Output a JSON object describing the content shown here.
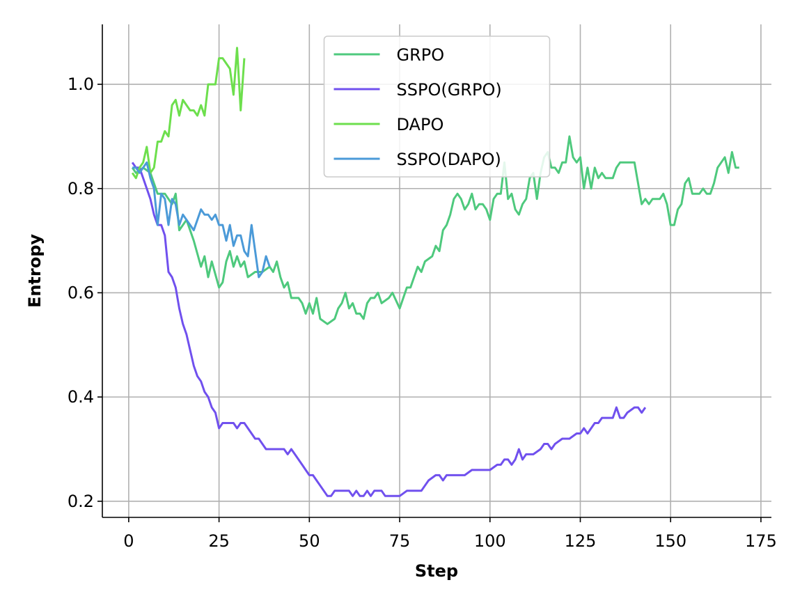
{
  "chart_data": {
    "type": "line",
    "xlabel": "Step",
    "ylabel": "Entropy",
    "xlim": [
      -7.3,
      177.9
    ],
    "ylim": [
      0.169,
      1.115
    ],
    "xticks": [
      0,
      25,
      50,
      75,
      100,
      125,
      150,
      175
    ],
    "yticks": [
      0.2,
      0.4,
      0.6,
      0.8,
      {
        "value": 1,
        "label": "1.0"
      }
    ],
    "grid": true,
    "legend_loc": "upper center",
    "series": [
      {
        "name": "GRPO",
        "color": "#4ec97d",
        "x": [
          1,
          2,
          4,
          6,
          8,
          10,
          12,
          13,
          14,
          16,
          18,
          20,
          21,
          22,
          23,
          25,
          26,
          27,
          28,
          29,
          30,
          31,
          32,
          33,
          35,
          37,
          39,
          40,
          41,
          42,
          43,
          44,
          45,
          47,
          48,
          49,
          50,
          51,
          52,
          53,
          55,
          57,
          58,
          59,
          60,
          61,
          62,
          63,
          64,
          65,
          66,
          67,
          68,
          69,
          70,
          72,
          73,
          75,
          77,
          78,
          80,
          81,
          82,
          84,
          85,
          86,
          87,
          88,
          89,
          90,
          91,
          92,
          93,
          94,
          95,
          96,
          97,
          98,
          99,
          100,
          101,
          102,
          103,
          104,
          105,
          106,
          107,
          108,
          109,
          110,
          111,
          112,
          113,
          114,
          115,
          116,
          117,
          118,
          119,
          120,
          121,
          122,
          123,
          124,
          125,
          126,
          127,
          128,
          129,
          130,
          131,
          132,
          134,
          135,
          136,
          137,
          140,
          141,
          142,
          143,
          144,
          145,
          147,
          148,
          149,
          150,
          151,
          152,
          153,
          154,
          155,
          156,
          157,
          158,
          159,
          160,
          161,
          162,
          163,
          164,
          165,
          166,
          167,
          168,
          169
        ],
        "values": [
          0.84,
          0.83,
          0.84,
          0.83,
          0.79,
          0.79,
          0.77,
          0.79,
          0.72,
          0.74,
          0.7,
          0.65,
          0.67,
          0.63,
          0.66,
          0.61,
          0.62,
          0.66,
          0.68,
          0.65,
          0.67,
          0.65,
          0.66,
          0.63,
          0.64,
          0.64,
          0.65,
          0.64,
          0.66,
          0.63,
          0.61,
          0.62,
          0.59,
          0.59,
          0.58,
          0.56,
          0.58,
          0.56,
          0.59,
          0.55,
          0.54,
          0.55,
          0.57,
          0.58,
          0.6,
          0.57,
          0.58,
          0.56,
          0.56,
          0.55,
          0.58,
          0.59,
          0.59,
          0.6,
          0.58,
          0.59,
          0.6,
          0.57,
          0.61,
          0.61,
          0.65,
          0.64,
          0.66,
          0.67,
          0.69,
          0.68,
          0.72,
          0.73,
          0.75,
          0.78,
          0.79,
          0.78,
          0.76,
          0.77,
          0.79,
          0.76,
          0.77,
          0.77,
          0.76,
          0.74,
          0.78,
          0.79,
          0.79,
          0.85,
          0.78,
          0.79,
          0.76,
          0.75,
          0.77,
          0.78,
          0.82,
          0.83,
          0.78,
          0.83,
          0.86,
          0.87,
          0.84,
          0.84,
          0.83,
          0.85,
          0.85,
          0.9,
          0.86,
          0.85,
          0.86,
          0.8,
          0.84,
          0.8,
          0.84,
          0.82,
          0.83,
          0.82,
          0.82,
          0.84,
          0.85,
          0.85,
          0.85,
          0.81,
          0.77,
          0.78,
          0.77,
          0.78,
          0.78,
          0.79,
          0.77,
          0.73,
          0.73,
          0.76,
          0.77,
          0.81,
          0.82,
          0.79,
          0.79,
          0.79,
          0.8,
          0.79,
          0.79,
          0.81,
          0.84,
          0.85,
          0.86,
          0.83,
          0.87,
          0.84,
          0.84
        ]
      },
      {
        "name": "SSPO(GRPO)",
        "color": "#7050ee",
        "x": [
          1,
          2,
          3,
          4,
          5,
          6,
          7,
          8,
          9,
          10,
          11,
          12,
          13,
          14,
          15,
          16,
          17,
          18,
          19,
          20,
          21,
          22,
          23,
          24,
          25,
          26,
          27,
          28,
          29,
          30,
          31,
          32,
          33,
          34,
          35,
          36,
          37,
          38,
          39,
          40,
          41,
          42,
          43,
          44,
          45,
          46,
          47,
          48,
          49,
          50,
          51,
          52,
          53,
          54,
          55,
          56,
          57,
          58,
          60,
          61,
          62,
          63,
          64,
          65,
          66,
          67,
          68,
          70,
          71,
          72,
          73,
          74,
          75,
          77,
          80,
          81,
          82,
          83,
          85,
          86,
          87,
          88,
          89,
          90,
          91,
          93,
          95,
          97,
          98,
          99,
          100,
          102,
          103,
          104,
          105,
          106,
          107,
          108,
          109,
          110,
          112,
          114,
          115,
          116,
          117,
          118,
          120,
          121,
          122,
          124,
          125,
          126,
          127,
          128,
          129,
          130,
          131,
          132,
          134,
          135,
          136,
          137,
          138,
          140,
          141,
          142,
          143
        ],
        "values": [
          0.85,
          0.84,
          0.84,
          0.82,
          0.8,
          0.78,
          0.75,
          0.73,
          0.73,
          0.71,
          0.64,
          0.63,
          0.61,
          0.57,
          0.54,
          0.52,
          0.49,
          0.46,
          0.44,
          0.43,
          0.41,
          0.4,
          0.38,
          0.37,
          0.34,
          0.35,
          0.35,
          0.35,
          0.35,
          0.34,
          0.35,
          0.35,
          0.34,
          0.33,
          0.32,
          0.32,
          0.31,
          0.3,
          0.3,
          0.3,
          0.3,
          0.3,
          0.3,
          0.29,
          0.3,
          0.29,
          0.28,
          0.27,
          0.26,
          0.25,
          0.25,
          0.24,
          0.23,
          0.22,
          0.21,
          0.21,
          0.22,
          0.22,
          0.22,
          0.22,
          0.21,
          0.22,
          0.21,
          0.21,
          0.22,
          0.21,
          0.22,
          0.22,
          0.21,
          0.21,
          0.21,
          0.21,
          0.21,
          0.22,
          0.22,
          0.22,
          0.23,
          0.24,
          0.25,
          0.25,
          0.24,
          0.25,
          0.25,
          0.25,
          0.25,
          0.25,
          0.26,
          0.26,
          0.26,
          0.26,
          0.26,
          0.27,
          0.27,
          0.28,
          0.28,
          0.27,
          0.28,
          0.3,
          0.28,
          0.29,
          0.29,
          0.3,
          0.31,
          0.31,
          0.3,
          0.31,
          0.32,
          0.32,
          0.32,
          0.33,
          0.33,
          0.34,
          0.33,
          0.34,
          0.35,
          0.35,
          0.36,
          0.36,
          0.36,
          0.38,
          0.36,
          0.36,
          0.37,
          0.38,
          0.38,
          0.37,
          0.38
        ]
      },
      {
        "name": "DAPO",
        "color": "#6ddf4d",
        "x": [
          1,
          2,
          3,
          4,
          5,
          6,
          7,
          8,
          9,
          10,
          11,
          12,
          13,
          14,
          15,
          16,
          17,
          18,
          19,
          20,
          21,
          22,
          23,
          24,
          25,
          26,
          27,
          28,
          29,
          30,
          31,
          32
        ],
        "values": [
          0.83,
          0.82,
          0.84,
          0.85,
          0.88,
          0.83,
          0.84,
          0.89,
          0.89,
          0.91,
          0.9,
          0.96,
          0.97,
          0.94,
          0.97,
          0.96,
          0.95,
          0.95,
          0.94,
          0.96,
          0.94,
          1.0,
          1.0,
          1.0,
          1.05,
          1.05,
          1.04,
          1.03,
          0.98,
          1.07,
          0.95,
          1.05
        ]
      },
      {
        "name": "SSPO(DAPO)",
        "color": "#4b9ad8",
        "x": [
          1,
          2,
          3,
          4,
          5,
          6,
          7,
          8,
          9,
          10,
          11,
          12,
          13,
          14,
          15,
          16,
          17,
          18,
          19,
          20,
          21,
          22,
          23,
          24,
          25,
          26,
          27,
          28,
          29,
          30,
          31,
          32,
          33,
          34,
          35,
          36,
          37,
          38,
          39
        ],
        "values": [
          0.84,
          0.84,
          0.83,
          0.84,
          0.85,
          0.82,
          0.8,
          0.73,
          0.79,
          0.78,
          0.73,
          0.78,
          0.77,
          0.73,
          0.75,
          0.74,
          0.73,
          0.72,
          0.74,
          0.76,
          0.75,
          0.75,
          0.74,
          0.75,
          0.73,
          0.73,
          0.7,
          0.73,
          0.69,
          0.71,
          0.71,
          0.68,
          0.67,
          0.73,
          0.68,
          0.63,
          0.64,
          0.67,
          0.65
        ]
      }
    ]
  }
}
